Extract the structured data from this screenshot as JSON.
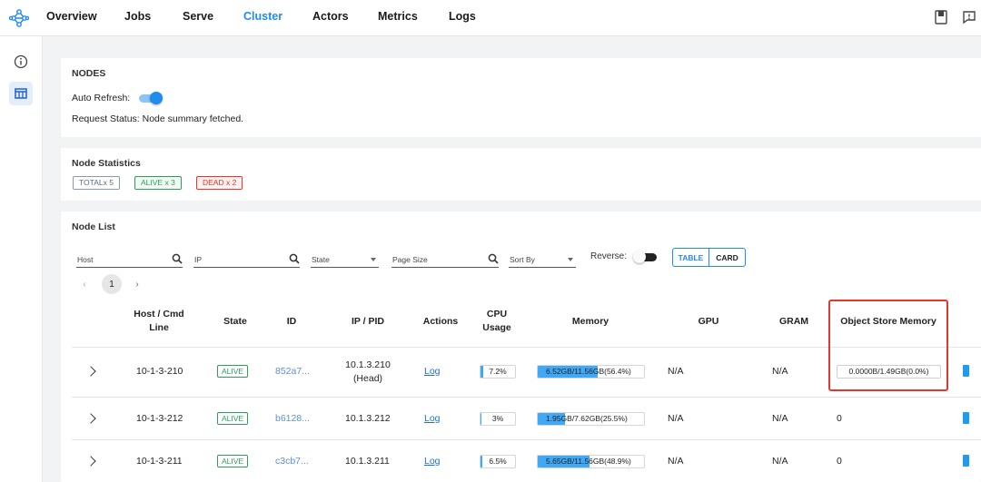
{
  "nav": {
    "items": [
      "Overview",
      "Jobs",
      "Serve",
      "Cluster",
      "Actors",
      "Metrics",
      "Logs"
    ],
    "active": "Cluster"
  },
  "colors": {
    "accent": "#1f8cf0",
    "alive": "#2ca05a",
    "dead": "#e2382d",
    "bar": "#3fa9f5",
    "highlight": "#e2382d"
  },
  "nodes_card": {
    "title": "NODES",
    "auto_refresh_label": "Auto Refresh:",
    "auto_refresh_on": true,
    "request_status": "Request Status: Node summary fetched."
  },
  "stats_card": {
    "title": "Node Statistics",
    "total": "TOTALx 5",
    "alive": "ALIVE x 3",
    "dead": "DEAD x 2"
  },
  "node_list": {
    "title": "Node List",
    "filters": {
      "host": "Host",
      "ip": "IP",
      "state": "State",
      "page_size": "Page Size",
      "sort_by": "Sort By",
      "reverse_label": "Reverse:",
      "reverse_on": false
    },
    "view_toggle": {
      "table": "TABLE",
      "card": "CARD",
      "selected": "TABLE"
    },
    "pagination": {
      "prev": "‹",
      "current": "1",
      "next": "›"
    },
    "columns": {
      "host": [
        "Host / Cmd",
        "Line"
      ],
      "state": "State",
      "id": "ID",
      "ip_pid": "IP / PID",
      "actions": "Actions",
      "cpu": [
        "CPU",
        "Usage"
      ],
      "memory": "Memory",
      "gpu": "GPU",
      "gram": "GRAM",
      "object_store": "Object Store Memory"
    },
    "rows": [
      {
        "host": "10-1-3-210",
        "state": "ALIVE",
        "id": "852a7...",
        "ip": [
          "10.1.3.210",
          "(Head)"
        ],
        "action": "Log",
        "cpu_label": "7.2%",
        "cpu_pct": 7.2,
        "mem_label": "6.52GB/11.56GB(56.4%)",
        "mem_pct": 56.4,
        "gpu": "N/A",
        "gram": "N/A",
        "object_store": "0.0000B/1.49GB(0.0%)"
      },
      {
        "host": "10-1-3-212",
        "state": "ALIVE",
        "id": "b6128...",
        "ip": [
          "10.1.3.212"
        ],
        "action": "Log",
        "cpu_label": "3%",
        "cpu_pct": 3,
        "mem_label": "1.95GB/7.62GB(25.5%)",
        "mem_pct": 25.5,
        "gpu": "N/A",
        "gram": "N/A",
        "object_store": "0"
      },
      {
        "host": "10-1-3-211",
        "state": "ALIVE",
        "id": "c3cb7...",
        "ip": [
          "10.1.3.211"
        ],
        "action": "Log",
        "cpu_label": "6.5%",
        "cpu_pct": 6.5,
        "mem_label": "5.65GB/11.56GB(48.9%)",
        "mem_pct": 48.9,
        "gpu": "N/A",
        "gram": "N/A",
        "object_store": "0"
      }
    ]
  }
}
